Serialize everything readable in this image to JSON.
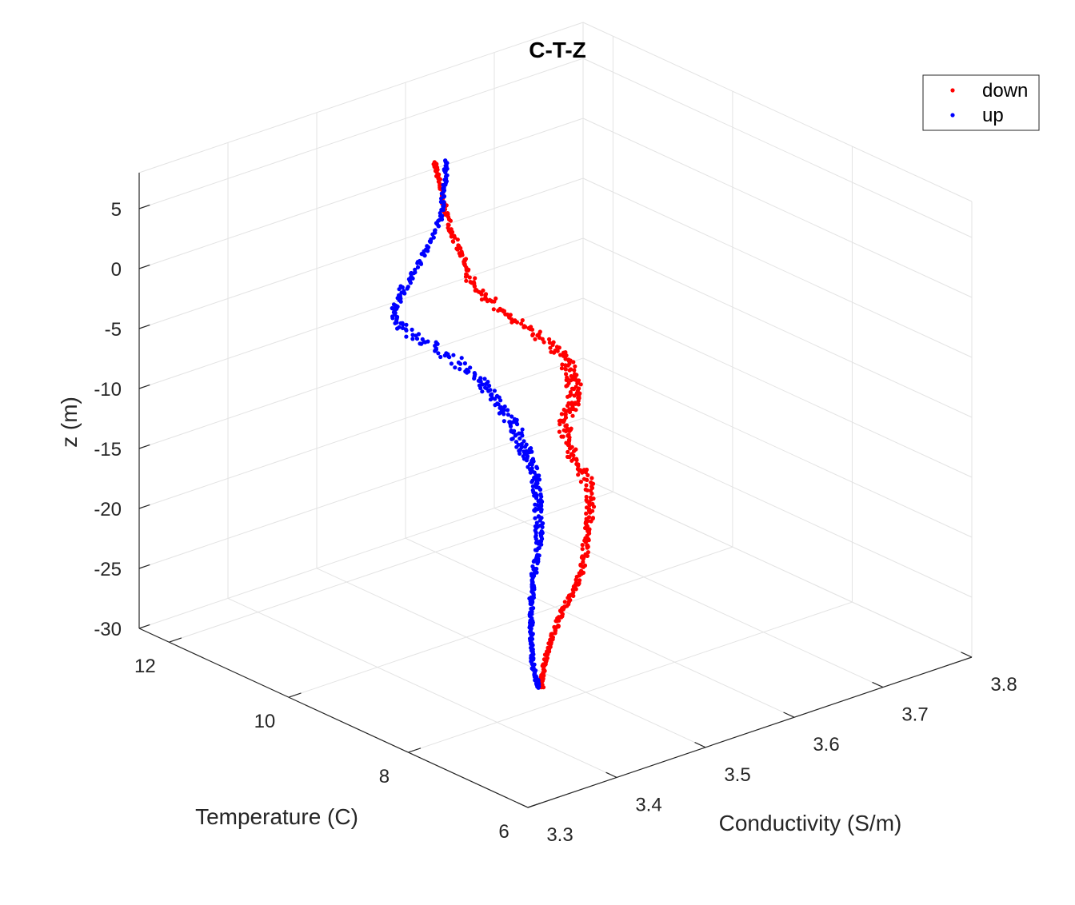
{
  "chart_data": {
    "type": "scatter",
    "title": "C-T-Z",
    "xlabel": "Conductivity (S/m)",
    "ylabel": "Temperature (C)",
    "zlabel": "z (m)",
    "xlim": [
      3.3,
      3.8
    ],
    "ylim": [
      6,
      12.5
    ],
    "zlim": [
      -30,
      8
    ],
    "x_ticks": [
      "3.3",
      "3.4",
      "3.5",
      "3.6",
      "3.7",
      "3.8"
    ],
    "y_ticks": [
      "6",
      "8",
      "10",
      "12"
    ],
    "z_ticks": [
      "-30",
      "-25",
      "-20",
      "-15",
      "-10",
      "-5",
      "0",
      "5"
    ],
    "grid": true,
    "legend_position": "top-right",
    "series": [
      {
        "name": "down",
        "color": "#ff0000",
        "points": [
          [
            3.523,
            10.86,
            7.0
          ],
          [
            3.525,
            10.88,
            6.5
          ],
          [
            3.527,
            10.84,
            5.0
          ],
          [
            3.53,
            10.82,
            3.5
          ],
          [
            3.533,
            10.78,
            2.0
          ],
          [
            3.536,
            10.72,
            0.5
          ],
          [
            3.54,
            10.65,
            -1.0
          ],
          [
            3.543,
            10.6,
            -2.5
          ],
          [
            3.548,
            10.5,
            -3.5
          ],
          [
            3.556,
            10.35,
            -4.5
          ],
          [
            3.565,
            10.2,
            -5.5
          ],
          [
            3.575,
            10.0,
            -6.5
          ],
          [
            3.585,
            9.8,
            -7.5
          ],
          [
            3.59,
            9.7,
            -8.5
          ],
          [
            3.595,
            9.65,
            -9.5
          ],
          [
            3.6,
            9.7,
            -10.5
          ],
          [
            3.605,
            9.75,
            -11.5
          ],
          [
            3.608,
            9.8,
            -12.5
          ],
          [
            3.605,
            9.85,
            -13.5
          ],
          [
            3.6,
            9.85,
            -14.5
          ],
          [
            3.598,
            9.8,
            -15.5
          ],
          [
            3.598,
            9.7,
            -16.5
          ],
          [
            3.6,
            9.55,
            -17.5
          ],
          [
            3.598,
            9.4,
            -18.5
          ],
          [
            3.592,
            9.3,
            -19.5
          ],
          [
            3.585,
            9.2,
            -20.5
          ],
          [
            3.578,
            9.15,
            -21.5
          ],
          [
            3.57,
            9.05,
            -22.5
          ],
          [
            3.56,
            8.95,
            -23.5
          ],
          [
            3.55,
            8.9,
            -24.5
          ],
          [
            3.54,
            8.9,
            -25.5
          ],
          [
            3.532,
            8.9,
            -26.5
          ],
          [
            3.526,
            8.9,
            -27.5
          ],
          [
            3.522,
            8.92,
            -28.5
          ],
          [
            3.52,
            8.95,
            -29.5
          ],
          [
            3.519,
            8.98,
            -30.5
          ],
          [
            3.518,
            9.0,
            -31.5
          ],
          [
            3.518,
            9.0,
            -32.5
          ]
        ]
      },
      {
        "name": "up",
        "color": "#0000ff",
        "points": [
          [
            3.538,
            10.9,
            6.8
          ],
          [
            3.536,
            10.88,
            5.5
          ],
          [
            3.532,
            10.86,
            4.0
          ],
          [
            3.528,
            10.84,
            2.5
          ],
          [
            3.52,
            10.84,
            1.0
          ],
          [
            3.508,
            10.86,
            -0.5
          ],
          [
            3.495,
            10.88,
            -2.0
          ],
          [
            3.485,
            10.9,
            -3.5
          ],
          [
            3.478,
            10.92,
            -4.5
          ],
          [
            3.482,
            10.8,
            -5.5
          ],
          [
            3.492,
            10.6,
            -6.5
          ],
          [
            3.505,
            10.4,
            -7.5
          ],
          [
            3.515,
            10.2,
            -8.5
          ],
          [
            3.522,
            10.05,
            -9.5
          ],
          [
            3.528,
            9.92,
            -10.5
          ],
          [
            3.532,
            9.82,
            -11.5
          ],
          [
            3.535,
            9.75,
            -12.5
          ],
          [
            3.538,
            9.7,
            -13.5
          ],
          [
            3.542,
            9.66,
            -14.5
          ],
          [
            3.546,
            9.64,
            -15.5
          ],
          [
            3.55,
            9.62,
            -16.5
          ],
          [
            3.552,
            9.6,
            -17.5
          ],
          [
            3.552,
            9.58,
            -18.5
          ],
          [
            3.55,
            9.55,
            -19.5
          ],
          [
            3.548,
            9.5,
            -20.5
          ],
          [
            3.545,
            9.45,
            -21.5
          ],
          [
            3.54,
            9.4,
            -22.5
          ],
          [
            3.534,
            9.35,
            -23.5
          ],
          [
            3.528,
            9.3,
            -24.5
          ],
          [
            3.523,
            9.25,
            -25.5
          ],
          [
            3.519,
            9.2,
            -26.5
          ],
          [
            3.516,
            9.15,
            -27.5
          ],
          [
            3.514,
            9.12,
            -28.5
          ],
          [
            3.513,
            9.1,
            -29.5
          ],
          [
            3.513,
            9.08,
            -30.5
          ],
          [
            3.514,
            9.05,
            -31.5
          ],
          [
            3.516,
            9.02,
            -32.5
          ]
        ]
      }
    ]
  }
}
